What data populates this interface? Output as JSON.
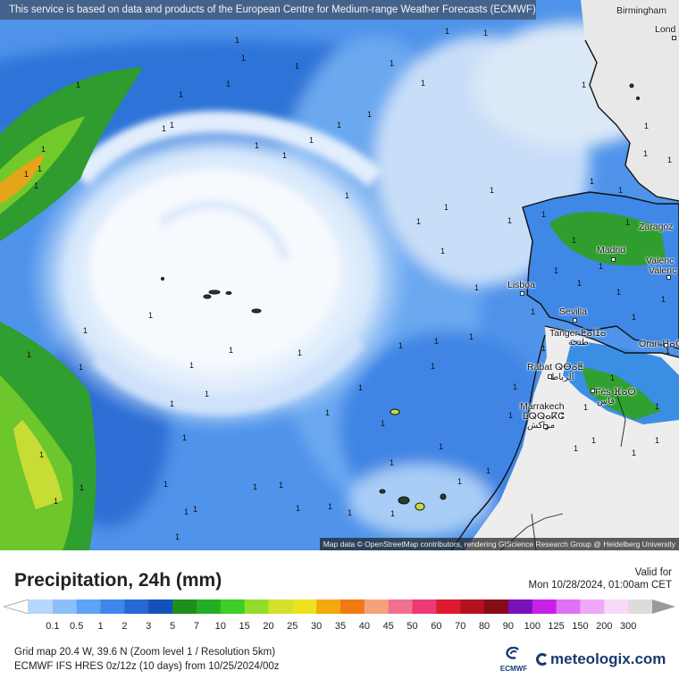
{
  "banner": "This service is based on data and products of the European Centre for Medium-range Weather Forecasts (ECMWF)",
  "attribution": "Map data © OpenStreetMap contributors, rendering GIScience Research Group @ Heidelberg University",
  "cities": {
    "birmingham": "Birmingham",
    "london": "Lond",
    "madrid": "Madrid",
    "zaragoza": "Zaragoz",
    "valencia_1": "Valenc",
    "valencia_2": "Valenc",
    "lisboa": "Lisboa",
    "sevilla": "Sevilla",
    "tanger": "Tanger ⵟⴰⵏⵊⴰ",
    "tanger_ar": "طنجة",
    "oran": "Oran ⵡⴰⵀⵔⴰⵏ",
    "rabat": "Rabat ⵕⴱⴰⵟ",
    "rabat_ar": "الرباط",
    "fes": "Fès ⴼⴰⵙ",
    "fes_ar": "فاس",
    "marrakech": "Marrakech",
    "marrakech_tif": "ⵎⵕⵕⴰⴽⵛ",
    "marrakech_ar": "مراكش"
  },
  "title": "Precipitation, 24h (mm)",
  "valid": {
    "label": "Valid for",
    "datetime": "Mon 10/28/2024, 01:00am CET"
  },
  "legend": {
    "ticks": [
      "0.1",
      "0.5",
      "1",
      "2",
      "3",
      "5",
      "7",
      "10",
      "15",
      "20",
      "25",
      "30",
      "35",
      "40",
      "45",
      "50",
      "60",
      "70",
      "80",
      "90",
      "100",
      "125",
      "150",
      "200",
      "300"
    ],
    "colors": [
      "#b4d7fb",
      "#8cbff9",
      "#5ea3f5",
      "#3d86ec",
      "#2768d6",
      "#1550b8",
      "#1d8f1d",
      "#24ae24",
      "#3ccf28",
      "#93dc2a",
      "#d4e02a",
      "#ede21e",
      "#f3a80e",
      "#f17b12",
      "#f5a27a",
      "#f07090",
      "#ec3a72",
      "#dc1a30",
      "#b4101e",
      "#860c16",
      "#7a10b8",
      "#c820e8",
      "#e070f4",
      "#f0a8f8",
      "#f8daf8",
      "#dcdcdc"
    ]
  },
  "info": {
    "grid": "Grid map 20.4 W, 39.6 N (Zoom level 1 / Resolution 5km)",
    "model": "ECMWF IFS HRES 0z/12z (10 days) from 10/25/2024/00z"
  },
  "logos": {
    "ecmwf": "ECMWF",
    "meteologix": "meteologix.com"
  },
  "contour_label": "1",
  "colors": {
    "ocean_fill": "#4d93ec",
    "swirl": "#eef4fc",
    "land": "#efefef"
  }
}
